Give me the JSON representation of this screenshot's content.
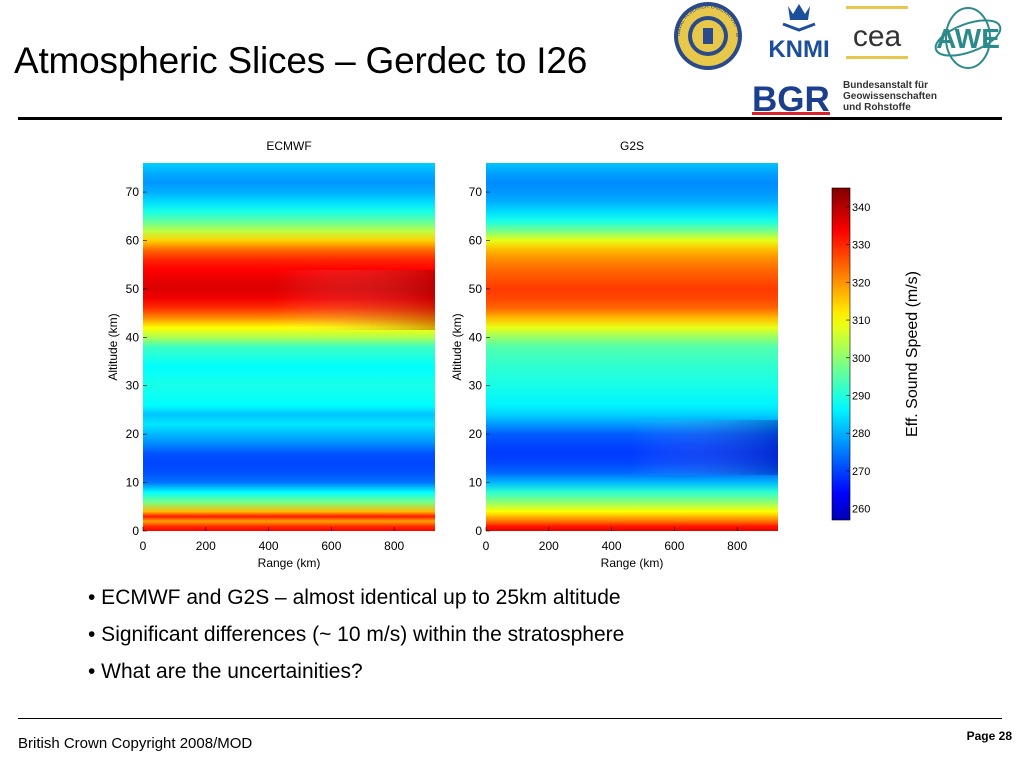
{
  "slide": {
    "title": "Atmospheric Slices – Gerdec to I26",
    "bullets": [
      "• ECMWF and G2S – almost identical up to 25km altitude",
      "• Significant differences (~ 10 m/s) within the stratosphere",
      "• What are the uncertainities?"
    ],
    "footer_left": "British Crown Copyright 2008/MOD",
    "footer_right": "Page 28"
  },
  "logos": {
    "nrl_text": "NAVAL RESEARCH LABORATORY · WASHINGTON DC",
    "knmi_text": "KNMI",
    "cea_text": "cea",
    "awe_text": "AWE",
    "bgr_text": "BGR",
    "bgr_lines": [
      "Bundesanstalt für",
      "Geowissenschaften",
      "und Rohstoffe"
    ]
  },
  "colors": {
    "nrl_gold": "#e8c84a",
    "nrl_blue": "#2a4a8a",
    "knmi_blue": "#1b4f9c",
    "awe_teal": "#2c8a8a",
    "bgr_blue": "#1b3f8c",
    "bgr_red": "#d8232a"
  },
  "chart_data": [
    {
      "type": "heatmap",
      "title": "ECMWF",
      "xlabel": "Range (km)",
      "ylabel": "Altitude (km)",
      "xlim": [
        0,
        930
      ],
      "ylim": [
        0,
        76
      ],
      "xticks": [
        0,
        200,
        400,
        600,
        800
      ],
      "yticks": [
        0,
        10,
        20,
        30,
        40,
        50,
        60,
        70
      ],
      "altitude_km": [
        0,
        1,
        2,
        3,
        4,
        6,
        8,
        10,
        12,
        14,
        16,
        18,
        20,
        22,
        24,
        26,
        30,
        34,
        38,
        40,
        42,
        44,
        46,
        48,
        50,
        52,
        54,
        56,
        58,
        60,
        62,
        64,
        66,
        68,
        70,
        72,
        74,
        76
      ],
      "sound_speed_ms": [
        334,
        330,
        320,
        332,
        318,
        300,
        290,
        278,
        275,
        274,
        275,
        280,
        284,
        288,
        285,
        290,
        292,
        290,
        295,
        305,
        312,
        322,
        330,
        335,
        337,
        336,
        334,
        331,
        325,
        316,
        306,
        298,
        292,
        287,
        283,
        281,
        283,
        286
      ],
      "range_gradient": "upper maximum (45–55 km) increases toward larger range"
    },
    {
      "type": "heatmap",
      "title": "G2S",
      "xlabel": "Range (km)",
      "ylabel": "Altitude (km)",
      "xlim": [
        0,
        930
      ],
      "ylim": [
        0,
        76
      ],
      "xticks": [
        0,
        200,
        400,
        600,
        800
      ],
      "yticks": [
        0,
        10,
        20,
        30,
        40,
        50,
        60,
        70
      ],
      "altitude_km": [
        0,
        1,
        2,
        3,
        4,
        6,
        8,
        10,
        12,
        14,
        16,
        18,
        20,
        22,
        24,
        26,
        30,
        34,
        38,
        40,
        42,
        44,
        46,
        48,
        50,
        52,
        54,
        56,
        58,
        60,
        62,
        64,
        66,
        68,
        70,
        72,
        74,
        76
      ],
      "sound_speed_ms": [
        336,
        332,
        324,
        318,
        312,
        302,
        294,
        284,
        277,
        274,
        273,
        274,
        276,
        281,
        286,
        289,
        292,
        294,
        297,
        303,
        310,
        318,
        325,
        328,
        329,
        327,
        325,
        322,
        318,
        310,
        300,
        292,
        287,
        283,
        281,
        280,
        282,
        285
      ],
      "range_gradient": "lower minimum (15–20 km) deepens slightly toward larger range"
    },
    {
      "type": "colorbar",
      "label": "Eff. Sound Speed (m/s)",
      "range": [
        257,
        345
      ],
      "ticks": [
        260,
        270,
        280,
        290,
        300,
        310,
        320,
        330,
        340
      ],
      "colormap": "jet"
    }
  ]
}
